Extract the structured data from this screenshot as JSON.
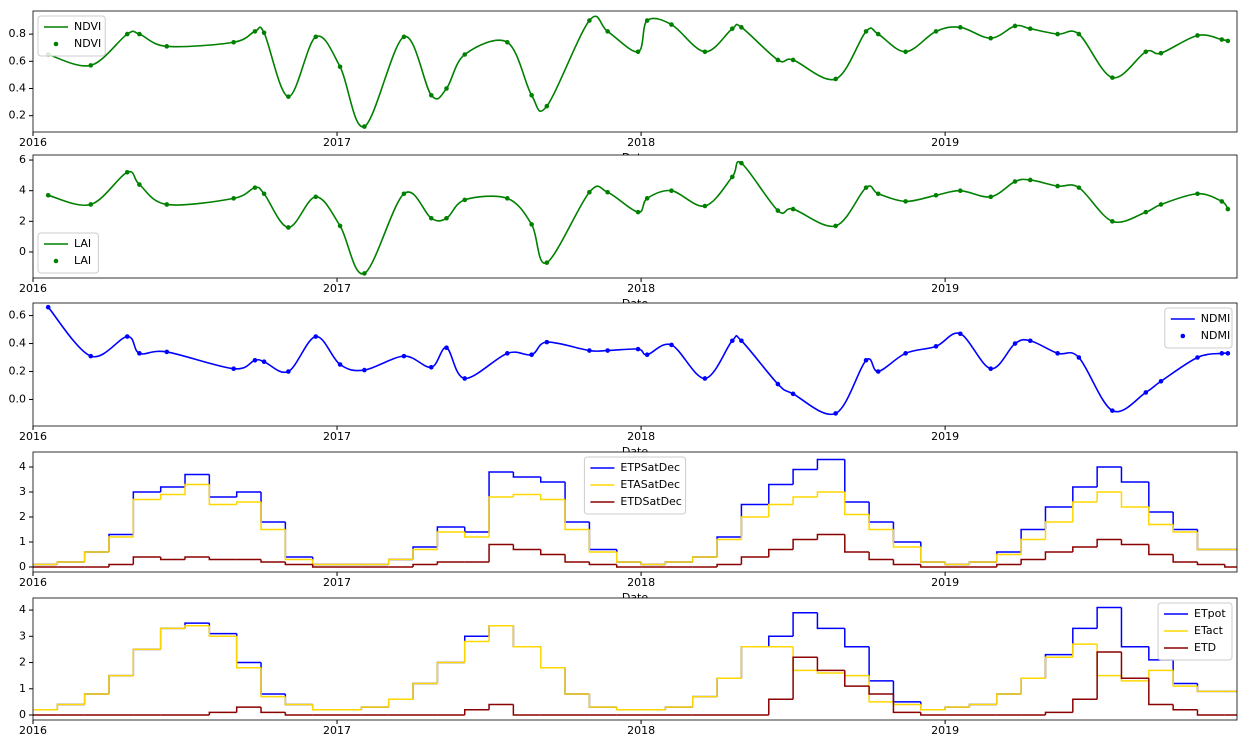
{
  "chart_data": [
    {
      "type": "line",
      "xlabel": "Date",
      "legend": "upper left",
      "xlim": [
        2016,
        2019.96
      ],
      "xticks": [
        2016,
        2017,
        2018,
        2019
      ],
      "ylim": [
        0.08,
        0.97
      ],
      "yticks": [
        0.2,
        0.4,
        0.6,
        0.8
      ],
      "x": [
        2016.05,
        2016.19,
        2016.31,
        2016.35,
        2016.44,
        2016.66,
        2016.73,
        2016.76,
        2016.84,
        2016.93,
        2017.01,
        2017.09,
        2017.22,
        2017.31,
        2017.36,
        2017.42,
        2017.56,
        2017.64,
        2017.69,
        2017.83,
        2017.89,
        2017.99,
        2018.02,
        2018.1,
        2018.21,
        2018.3,
        2018.33,
        2018.45,
        2018.5,
        2018.64,
        2018.74,
        2018.78,
        2018.87,
        2018.97,
        2019.05,
        2019.15,
        2019.23,
        2019.28,
        2019.37,
        2019.44,
        2019.55,
        2019.66,
        2019.71,
        2019.83,
        2019.91,
        2019.93
      ],
      "series": [
        {
          "name": "NDVI",
          "color": "#008000",
          "style": "spline",
          "values": [
            0.65,
            0.57,
            0.8,
            0.8,
            0.71,
            0.74,
            0.82,
            0.81,
            0.34,
            0.78,
            0.56,
            0.12,
            0.78,
            0.35,
            0.4,
            0.65,
            0.74,
            0.35,
            0.27,
            0.9,
            0.82,
            0.67,
            0.9,
            0.87,
            0.67,
            0.84,
            0.85,
            0.61,
            0.61,
            0.47,
            0.82,
            0.8,
            0.67,
            0.82,
            0.85,
            0.77,
            0.86,
            0.84,
            0.8,
            0.8,
            0.48,
            0.67,
            0.66,
            0.79,
            0.76,
            0.75
          ]
        },
        {
          "name": "NDVI",
          "color": "#008000",
          "style": "markers",
          "values": [
            0.65,
            0.57,
            0.8,
            0.8,
            0.71,
            0.74,
            0.82,
            0.81,
            0.34,
            0.78,
            0.56,
            0.12,
            0.78,
            0.35,
            0.4,
            0.65,
            0.74,
            0.35,
            0.27,
            0.9,
            0.82,
            0.67,
            0.9,
            0.87,
            0.67,
            0.84,
            0.85,
            0.61,
            0.61,
            0.47,
            0.82,
            0.8,
            0.67,
            0.82,
            0.85,
            0.77,
            0.86,
            0.84,
            0.8,
            0.8,
            0.48,
            0.67,
            0.66,
            0.79,
            0.76,
            0.75
          ]
        }
      ]
    },
    {
      "type": "line",
      "xlabel": "Date",
      "legend": "lower left",
      "xlim": [
        2016,
        2019.96
      ],
      "xticks": [
        2016,
        2017,
        2018,
        2019
      ],
      "ylim": [
        -1.7,
        6.33
      ],
      "yticks": [
        0,
        2,
        4,
        6
      ],
      "x": [
        2016.05,
        2016.19,
        2016.31,
        2016.35,
        2016.44,
        2016.66,
        2016.73,
        2016.76,
        2016.84,
        2016.93,
        2017.01,
        2017.09,
        2017.22,
        2017.31,
        2017.36,
        2017.42,
        2017.56,
        2017.64,
        2017.69,
        2017.83,
        2017.89,
        2017.99,
        2018.02,
        2018.1,
        2018.21,
        2018.3,
        2018.33,
        2018.45,
        2018.5,
        2018.64,
        2018.74,
        2018.78,
        2018.87,
        2018.97,
        2019.05,
        2019.15,
        2019.23,
        2019.28,
        2019.37,
        2019.44,
        2019.55,
        2019.66,
        2019.71,
        2019.83,
        2019.91,
        2019.93
      ],
      "series": [
        {
          "name": "LAI",
          "color": "#008000",
          "style": "spline",
          "values": [
            3.7,
            3.1,
            5.2,
            4.4,
            3.1,
            3.5,
            4.2,
            3.8,
            1.6,
            3.6,
            1.7,
            -1.4,
            3.8,
            2.2,
            2.2,
            3.4,
            3.5,
            1.8,
            -0.7,
            3.9,
            3.9,
            2.6,
            3.5,
            4.0,
            3.0,
            4.9,
            5.8,
            2.7,
            2.8,
            1.7,
            4.2,
            3.8,
            3.3,
            3.7,
            4.0,
            3.6,
            4.6,
            4.7,
            4.3,
            4.2,
            2.0,
            2.6,
            3.1,
            3.8,
            3.3,
            2.8
          ]
        },
        {
          "name": "LAI",
          "color": "#008000",
          "style": "markers",
          "values": [
            3.7,
            3.1,
            5.2,
            4.4,
            3.1,
            3.5,
            4.2,
            3.8,
            1.6,
            3.6,
            1.7,
            -1.4,
            3.8,
            2.2,
            2.2,
            3.4,
            3.5,
            1.8,
            -0.7,
            3.9,
            3.9,
            2.6,
            3.5,
            4.0,
            3.0,
            4.9,
            5.8,
            2.7,
            2.8,
            1.7,
            4.2,
            3.8,
            3.3,
            3.7,
            4.0,
            3.6,
            4.6,
            4.7,
            4.3,
            4.2,
            2.0,
            2.6,
            3.1,
            3.8,
            3.3,
            2.8
          ]
        }
      ]
    },
    {
      "type": "line",
      "xlabel": "Date",
      "legend": "upper right",
      "xlim": [
        2016,
        2019.96
      ],
      "xticks": [
        2016,
        2017,
        2018,
        2019
      ],
      "ylim": [
        -0.19,
        0.69
      ],
      "yticks": [
        {
          "value": 0,
          "label": "0.0"
        },
        0.2,
        0.4,
        0.6
      ],
      "x": [
        2016.05,
        2016.19,
        2016.31,
        2016.35,
        2016.44,
        2016.66,
        2016.73,
        2016.76,
        2016.84,
        2016.93,
        2017.01,
        2017.09,
        2017.22,
        2017.31,
        2017.36,
        2017.42,
        2017.56,
        2017.64,
        2017.69,
        2017.83,
        2017.89,
        2017.99,
        2018.02,
        2018.1,
        2018.21,
        2018.3,
        2018.33,
        2018.45,
        2018.5,
        2018.64,
        2018.74,
        2018.78,
        2018.87,
        2018.97,
        2019.05,
        2019.15,
        2019.23,
        2019.28,
        2019.37,
        2019.44,
        2019.55,
        2019.66,
        2019.71,
        2019.83,
        2019.91,
        2019.93
      ],
      "series": [
        {
          "name": "NDMI",
          "color": "#0000ff",
          "style": "spline",
          "values": [
            0.66,
            0.31,
            0.45,
            0.33,
            0.34,
            0.22,
            0.28,
            0.27,
            0.2,
            0.45,
            0.25,
            0.21,
            0.31,
            0.23,
            0.37,
            0.15,
            0.33,
            0.32,
            0.41,
            0.35,
            0.35,
            0.36,
            0.32,
            0.39,
            0.15,
            0.42,
            0.42,
            0.11,
            0.04,
            -0.1,
            0.28,
            0.2,
            0.33,
            0.38,
            0.47,
            0.22,
            0.4,
            0.42,
            0.33,
            0.3,
            -0.08,
            0.05,
            0.13,
            0.3,
            0.33,
            0.33
          ]
        },
        {
          "name": "NDMI",
          "color": "#0000ff",
          "style": "markers",
          "values": [
            0.66,
            0.31,
            0.45,
            0.33,
            0.34,
            0.22,
            0.28,
            0.27,
            0.2,
            0.45,
            0.25,
            0.21,
            0.31,
            0.23,
            0.37,
            0.15,
            0.33,
            0.32,
            0.41,
            0.35,
            0.35,
            0.36,
            0.32,
            0.39,
            0.15,
            0.42,
            0.42,
            0.11,
            0.04,
            -0.1,
            0.28,
            0.2,
            0.33,
            0.38,
            0.47,
            0.22,
            0.4,
            0.42,
            0.33,
            0.3,
            -0.08,
            0.05,
            0.13,
            0.3,
            0.33,
            0.33
          ]
        }
      ]
    },
    {
      "type": "line",
      "xlabel": "Date",
      "legend": "upper center",
      "xlim": [
        2016,
        2019.96
      ],
      "xticks": [
        2016,
        2017,
        2018,
        2019
      ],
      "ylim": [
        -0.2,
        4.6
      ],
      "yticks": [
        0,
        1,
        2,
        3,
        4
      ],
      "x": [
        2016,
        2016.08,
        2016.17,
        2016.25,
        2016.33,
        2016.42,
        2016.5,
        2016.58,
        2016.67,
        2016.75,
        2016.83,
        2016.92,
        2017,
        2017.08,
        2017.17,
        2017.25,
        2017.33,
        2017.42,
        2017.5,
        2017.58,
        2017.67,
        2017.75,
        2017.83,
        2017.92,
        2018,
        2018.08,
        2018.17,
        2018.25,
        2018.33,
        2018.42,
        2018.5,
        2018.58,
        2018.67,
        2018.75,
        2018.83,
        2018.92,
        2019,
        2019.08,
        2019.17,
        2019.25,
        2019.33,
        2019.42,
        2019.5,
        2019.58,
        2019.67,
        2019.75,
        2019.83,
        2019.92
      ],
      "series": [
        {
          "name": "ETPSatDec",
          "color": "#0000ff",
          "style": "step",
          "values": [
            0.1,
            0.2,
            0.6,
            1.3,
            3.0,
            3.2,
            3.7,
            2.8,
            3.0,
            1.8,
            0.4,
            0.1,
            0.1,
            0.1,
            0.3,
            0.8,
            1.6,
            1.4,
            3.8,
            3.6,
            3.4,
            1.8,
            0.7,
            0.2,
            0.1,
            0.2,
            0.4,
            1.2,
            2.5,
            3.3,
            3.9,
            4.3,
            2.6,
            1.8,
            1.0,
            0.2,
            0.1,
            0.2,
            0.6,
            1.5,
            2.4,
            3.2,
            4.0,
            3.4,
            2.2,
            1.5,
            0.7,
            0.7
          ]
        },
        {
          "name": "ETASatDec",
          "color": "#ffd700",
          "style": "step",
          "values": [
            0.1,
            0.2,
            0.6,
            1.2,
            2.7,
            2.9,
            3.3,
            2.5,
            2.6,
            1.5,
            0.3,
            0.1,
            0.1,
            0.1,
            0.3,
            0.7,
            1.4,
            1.2,
            2.8,
            2.9,
            2.7,
            1.5,
            0.6,
            0.2,
            0.1,
            0.2,
            0.4,
            1.1,
            2.0,
            2.5,
            2.8,
            3.0,
            2.1,
            1.5,
            0.8,
            0.2,
            0.1,
            0.2,
            0.5,
            1.1,
            1.8,
            2.6,
            3.0,
            2.4,
            1.7,
            1.4,
            0.7,
            0.7
          ]
        },
        {
          "name": "ETDSatDec",
          "color": "#8b0000",
          "style": "step",
          "values": [
            0,
            0,
            0,
            0.1,
            0.4,
            0.3,
            0.4,
            0.3,
            0.3,
            0.2,
            0.1,
            0,
            0,
            0,
            0,
            0.1,
            0.2,
            0.2,
            0.9,
            0.7,
            0.5,
            0.2,
            0.1,
            0,
            0,
            0,
            0,
            0.1,
            0.4,
            0.7,
            1.1,
            1.3,
            0.6,
            0.3,
            0.1,
            0,
            0,
            0,
            0.1,
            0.3,
            0.6,
            0.8,
            1.1,
            0.9,
            0.5,
            0.2,
            0.1,
            0
          ]
        }
      ]
    },
    {
      "type": "line",
      "legend": "upper right",
      "xlim": [
        2016,
        2019.96
      ],
      "xticks": [
        2016,
        2017,
        2018,
        2019
      ],
      "ylim": [
        -0.19,
        4.46
      ],
      "yticks": [
        0,
        1,
        2,
        3,
        4
      ],
      "x": [
        2016,
        2016.08,
        2016.17,
        2016.25,
        2016.33,
        2016.42,
        2016.5,
        2016.58,
        2016.67,
        2016.75,
        2016.83,
        2016.92,
        2017,
        2017.08,
        2017.17,
        2017.25,
        2017.33,
        2017.42,
        2017.5,
        2017.58,
        2017.67,
        2017.75,
        2017.83,
        2017.92,
        2018,
        2018.08,
        2018.17,
        2018.25,
        2018.33,
        2018.42,
        2018.5,
        2018.58,
        2018.67,
        2018.75,
        2018.83,
        2018.92,
        2019,
        2019.08,
        2019.17,
        2019.25,
        2019.33,
        2019.42,
        2019.5,
        2019.58,
        2019.67,
        2019.75,
        2019.83,
        2019.92
      ],
      "series": [
        {
          "name": "ETpot",
          "color": "#0000ff",
          "style": "step",
          "values": [
            0.2,
            0.4,
            0.8,
            1.5,
            2.5,
            3.3,
            3.5,
            3.1,
            2.0,
            0.8,
            0.4,
            0.2,
            0.2,
            0.3,
            0.6,
            1.2,
            2.0,
            3.0,
            3.4,
            2.6,
            1.8,
            0.8,
            0.3,
            0.2,
            0.2,
            0.3,
            0.7,
            1.4,
            2.6,
            3.0,
            3.9,
            3.3,
            2.6,
            1.3,
            0.5,
            0.2,
            0.3,
            0.4,
            0.8,
            1.4,
            2.3,
            3.3,
            4.1,
            2.6,
            2.1,
            1.2,
            0.9,
            0.9
          ]
        },
        {
          "name": "ETact",
          "color": "#ffd700",
          "style": "step",
          "values": [
            0.2,
            0.4,
            0.8,
            1.5,
            2.5,
            3.3,
            3.4,
            3.0,
            1.8,
            0.7,
            0.4,
            0.2,
            0.2,
            0.3,
            0.6,
            1.2,
            2.0,
            2.8,
            3.4,
            2.6,
            1.8,
            0.8,
            0.3,
            0.2,
            0.2,
            0.3,
            0.7,
            1.4,
            2.6,
            2.6,
            1.7,
            1.6,
            1.5,
            0.5,
            0.4,
            0.2,
            0.3,
            0.4,
            0.8,
            1.4,
            2.2,
            2.7,
            1.5,
            1.3,
            1.7,
            1.1,
            0.9,
            0.9
          ]
        },
        {
          "name": "ETD",
          "color": "#8b0000",
          "style": "step",
          "values": [
            0,
            0,
            0,
            0,
            0,
            0,
            0,
            0.1,
            0.3,
            0.1,
            0,
            0,
            0,
            0,
            0,
            0,
            0,
            0.2,
            0.4,
            0,
            0,
            0,
            0,
            0,
            0,
            0,
            0,
            0,
            0,
            0.6,
            2.2,
            1.7,
            1.1,
            0.8,
            0.1,
            0,
            0,
            0,
            0,
            0,
            0.1,
            0.6,
            2.4,
            1.4,
            0.4,
            0.2,
            0,
            0
          ]
        }
      ]
    }
  ]
}
